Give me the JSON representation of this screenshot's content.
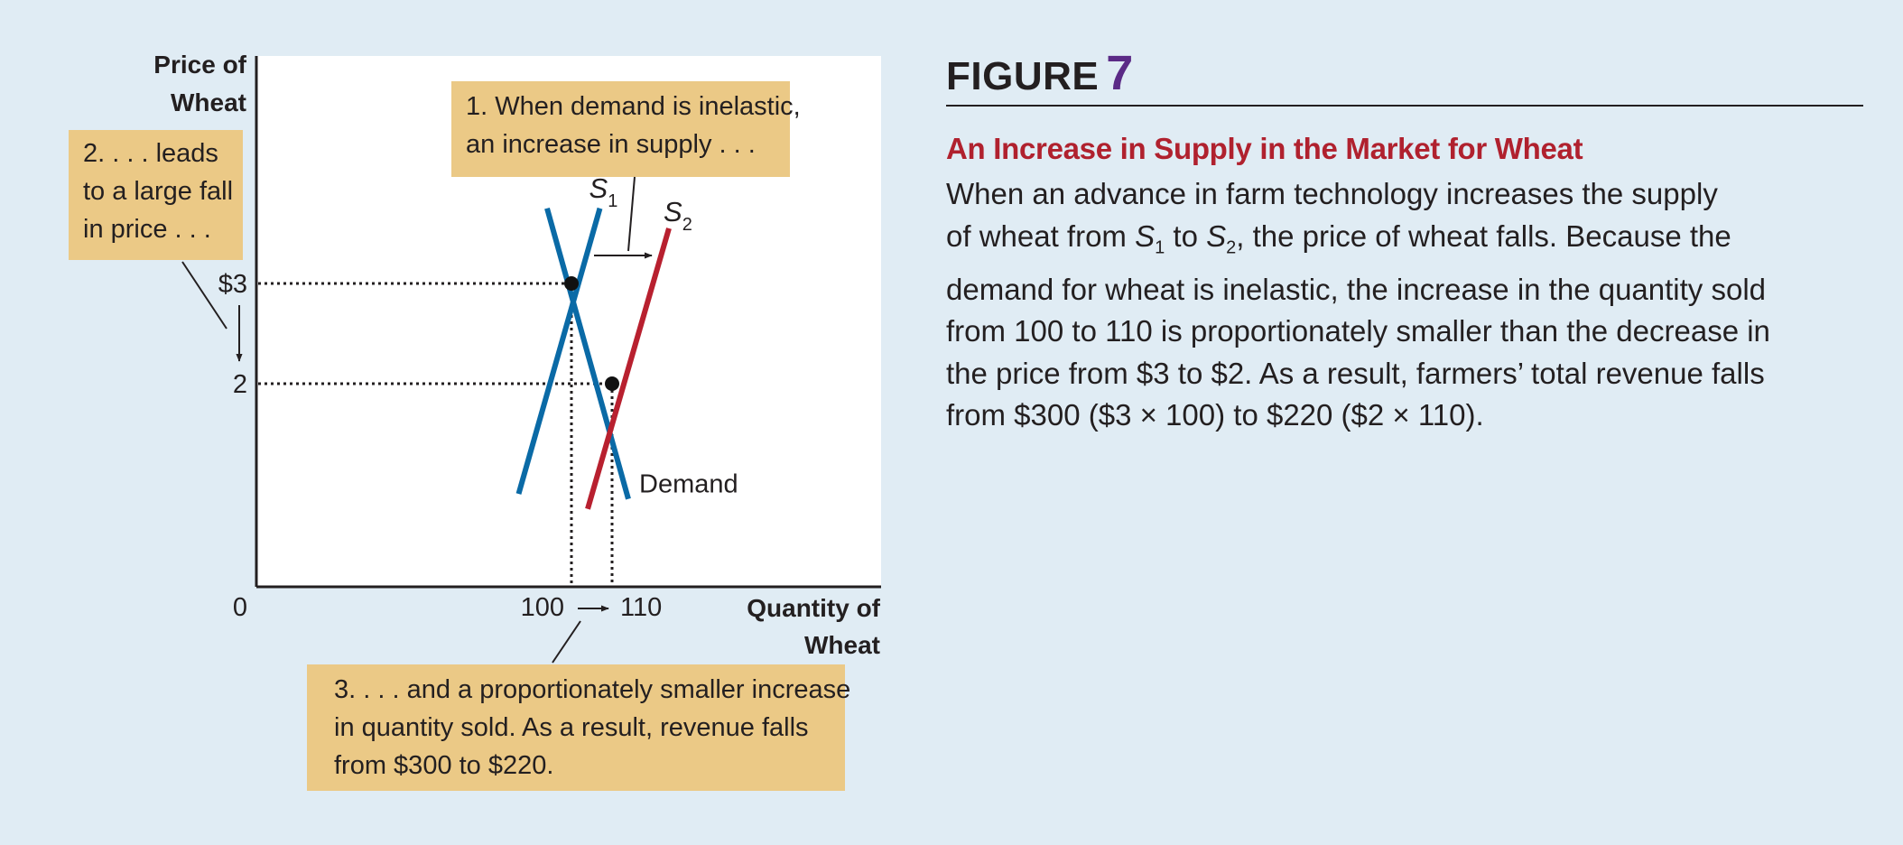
{
  "figure": {
    "label": "FIGURE",
    "number": "7",
    "title": "An Increase in Supply in the Market for Wheat",
    "caption_lines": [
      [
        "When an advance in farm technology increases the supply"
      ],
      [
        "of wheat from ",
        {
          "i": "S",
          "sub": "1"
        },
        " to ",
        {
          "i": "S",
          "sub": "2"
        },
        ", the price of wheat falls. Because the"
      ],
      [
        "demand for wheat is inelastic, the increase in the quantity sold"
      ],
      [
        "from 100 to 110 is proportionately smaller than the decrease in"
      ],
      [
        "the price from $3 to $2. As a result, farmers’ total revenue falls"
      ],
      [
        "from $300 ($3 × 100) to $220 ($2 × 110)."
      ]
    ]
  },
  "chart_data": {
    "type": "line",
    "ylabel": [
      "Price of",
      "Wheat"
    ],
    "xlabel": [
      "Quantity of",
      "Wheat"
    ],
    "origin_label": "0",
    "y_ticks": [
      {
        "value": 3,
        "label": "$3"
      },
      {
        "value": 2,
        "label": "2"
      }
    ],
    "x_ticks": [
      {
        "value": 100,
        "label": "100"
      },
      {
        "value": 110,
        "label": "110"
      }
    ],
    "series": [
      {
        "name": "Demand",
        "label": "Demand",
        "color": "#0a6aa6",
        "points": [
          [
            94,
            3.75
          ],
          [
            114,
            0.85
          ]
        ]
      },
      {
        "name": "S1",
        "label_main": "S",
        "label_sub": "1",
        "color": "#0a6aa6",
        "points": [
          [
            87,
            0.9
          ],
          [
            107,
            3.75
          ]
        ]
      },
      {
        "name": "S2",
        "label_main": "S",
        "label_sub": "2",
        "color": "#b8202f",
        "points": [
          [
            104,
            0.75
          ],
          [
            124,
            3.55
          ]
        ]
      }
    ],
    "equilibria": [
      {
        "q": 100,
        "p": 3
      },
      {
        "q": 110,
        "p": 2
      }
    ],
    "annotations": {
      "supply": [
        "1. When demand is inelastic,",
        "an increase in supply . . ."
      ],
      "price": [
        "2. . . . leads",
        "to a large fall",
        "in price . . ."
      ],
      "quantity": [
        "3.  . . . and a proportionately smaller increase",
        "in quantity sold. As a result, revenue falls",
        "from $300 to $220."
      ]
    },
    "colors": {
      "demand": "#0a6aa6",
      "s1": "#0a6aa6",
      "s2": "#b8202f",
      "note_box": "#ebc986"
    }
  }
}
